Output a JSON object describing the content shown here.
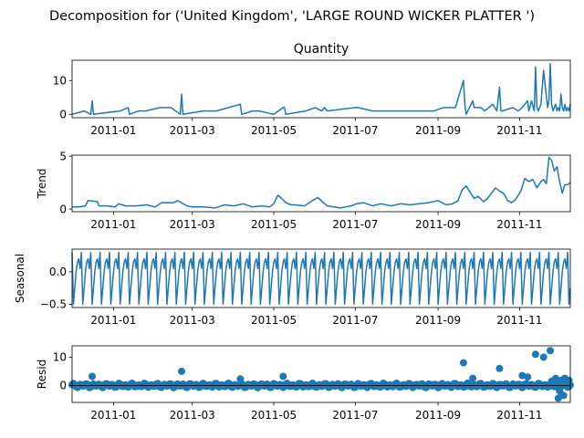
{
  "suptitle": "Decomposition for ('United Kingdom', 'LARGE ROUND WICKER PLATTER ')",
  "x_tick_labels": [
    "2011-01",
    "2011-03",
    "2011-05",
    "2011-07",
    "2011-09",
    "2011-11"
  ],
  "colors": {
    "line": "#1f77b4",
    "axis": "#000000"
  },
  "chart_data": [
    {
      "type": "line",
      "title": "Quantity",
      "ylabel": "",
      "ylim": [
        -1,
        16
      ],
      "yticks": [
        "0",
        "10"
      ],
      "x_range": [
        "2010-12-01",
        "2011-12-09"
      ],
      "series": [
        {
          "x": [
            "2010-12-01",
            "2010-12-10",
            "2010-12-15",
            "2010-12-16",
            "2010-12-17",
            "2011-01-06",
            "2011-01-12",
            "2011-01-13",
            "2011-01-20",
            "2011-01-25",
            "2011-02-05",
            "2011-02-13",
            "2011-02-20",
            "2011-02-21",
            "2011-02-22",
            "2011-03-09",
            "2011-03-18",
            "2011-03-19",
            "2011-04-06",
            "2011-04-07",
            "2011-04-15",
            "2011-04-20",
            "2011-05-01",
            "2011-05-08",
            "2011-05-09",
            "2011-05-10",
            "2011-05-25",
            "2011-06-01",
            "2011-06-06",
            "2011-06-08",
            "2011-06-10",
            "2011-07-01",
            "2011-07-03",
            "2011-07-14",
            "2011-07-21",
            "2011-08-03",
            "2011-08-15",
            "2011-08-29",
            "2011-09-05",
            "2011-09-14",
            "2011-09-20",
            "2011-09-21",
            "2011-09-22",
            "2011-09-27",
            "2011-09-28",
            "2011-10-03",
            "2011-10-06",
            "2011-10-12",
            "2011-10-15",
            "2011-10-17",
            "2011-10-18",
            "2011-10-19",
            "2011-10-27",
            "2011-10-31",
            "2011-11-03",
            "2011-11-07",
            "2011-11-08",
            "2011-11-10",
            "2011-11-12",
            "2011-11-13",
            "2011-11-14",
            "2011-11-15",
            "2011-11-17",
            "2011-11-19",
            "2011-11-22",
            "2011-11-23",
            "2011-11-24",
            "2011-11-25",
            "2011-11-26",
            "2011-11-27",
            "2011-11-28",
            "2011-11-29",
            "2011-11-30",
            "2011-12-01",
            "2011-12-02",
            "2011-12-03",
            "2011-12-04",
            "2011-12-05",
            "2011-12-06",
            "2011-12-07",
            "2011-12-08",
            "2011-12-09"
          ],
          "y": [
            0,
            1,
            0,
            4,
            0,
            1,
            2,
            0,
            1,
            1,
            2,
            2,
            0,
            6,
            0,
            1,
            1,
            1,
            3,
            0,
            1,
            1,
            0,
            2,
            2,
            0,
            1,
            2,
            1,
            2,
            1,
            2,
            2,
            1,
            1,
            1,
            1,
            1,
            2,
            2,
            10,
            3,
            0,
            4,
            2,
            2,
            1,
            3,
            1,
            8,
            1,
            1,
            2,
            1,
            2,
            4,
            1,
            4,
            1,
            14,
            2,
            1,
            3,
            13,
            2,
            4,
            15,
            3,
            1,
            2,
            3,
            1,
            2,
            1,
            6,
            2,
            1,
            3,
            1,
            2,
            1,
            3
          ]
        }
      ]
    },
    {
      "type": "line",
      "title": "",
      "ylabel": "Trend",
      "ylim": [
        -0.25,
        5.1
      ],
      "yticks": [
        "0",
        "5"
      ],
      "x_range": [
        "2010-12-01",
        "2011-12-09"
      ],
      "series": [
        {
          "x": [
            "2010-12-01",
            "2010-12-06",
            "2010-12-11",
            "2010-12-13",
            "2010-12-20",
            "2010-12-21",
            "2010-12-27",
            "2011-01-02",
            "2011-01-05",
            "2011-01-10",
            "2011-01-18",
            "2011-01-26",
            "2011-02-01",
            "2011-02-06",
            "2011-02-15",
            "2011-02-18",
            "2011-02-25",
            "2011-03-01",
            "2011-03-10",
            "2011-03-18",
            "2011-03-25",
            "2011-04-01",
            "2011-04-08",
            "2011-04-15",
            "2011-04-22",
            "2011-04-28",
            "2011-05-01",
            "2011-05-04",
            "2011-05-07",
            "2011-05-10",
            "2011-05-14",
            "2011-05-17",
            "2011-05-24",
            "2011-05-30",
            "2011-06-03",
            "2011-06-07",
            "2011-06-10",
            "2011-06-15",
            "2011-06-20",
            "2011-06-28",
            "2011-07-02",
            "2011-07-07",
            "2011-07-14",
            "2011-07-20",
            "2011-07-28",
            "2011-08-04",
            "2011-08-11",
            "2011-08-18",
            "2011-08-25",
            "2011-09-01",
            "2011-09-07",
            "2011-09-12",
            "2011-09-16",
            "2011-09-19",
            "2011-09-22",
            "2011-09-25",
            "2011-09-28",
            "2011-10-01",
            "2011-10-05",
            "2011-10-08",
            "2011-10-11",
            "2011-10-14",
            "2011-10-17",
            "2011-10-20",
            "2011-10-23",
            "2011-10-26",
            "2011-10-29",
            "2011-11-02",
            "2011-11-05",
            "2011-11-08",
            "2011-11-11",
            "2011-11-14",
            "2011-11-17",
            "2011-11-19",
            "2011-11-21",
            "2011-11-23",
            "2011-11-25",
            "2011-11-27",
            "2011-11-29",
            "2011-12-01",
            "2011-12-03",
            "2011-12-05",
            "2011-12-07",
            "2011-12-09"
          ],
          "y": [
            0.2,
            0.2,
            0.3,
            0.8,
            0.7,
            0.3,
            0.3,
            0.2,
            0.5,
            0.3,
            0.3,
            0.4,
            0.2,
            0.6,
            0.6,
            0.8,
            0.3,
            0.2,
            0.2,
            0.1,
            0.4,
            0.3,
            0.5,
            0.2,
            0.3,
            0.2,
            0.5,
            1.3,
            1.0,
            0.6,
            0.4,
            0.4,
            0.3,
            0.8,
            1.1,
            0.6,
            0.3,
            0.2,
            0.1,
            0.3,
            0.5,
            0.6,
            0.3,
            0.5,
            0.3,
            0.5,
            0.4,
            0.5,
            0.6,
            0.8,
            0.4,
            0.5,
            0.8,
            1.8,
            2.2,
            1.6,
            1.0,
            1.2,
            0.7,
            1.0,
            1.5,
            2.0,
            1.7,
            1.5,
            0.8,
            0.6,
            0.9,
            1.7,
            2.9,
            2.6,
            2.8,
            2.0,
            2.6,
            2.8,
            2.4,
            4.9,
            4.6,
            3.6,
            4.0,
            2.6,
            1.5,
            2.3,
            2.3,
            2.5
          ]
        }
      ]
    },
    {
      "type": "line",
      "title": "",
      "ylabel": "Seasonal",
      "ylim": [
        -0.55,
        0.35
      ],
      "yticks": [
        "0.0",
        "−0.5"
      ],
      "x_range": [
        "2010-12-01",
        "2011-12-09"
      ],
      "period_days": 7,
      "pattern": [
        0.3,
        -0.5,
        -0.25,
        0.0,
        0.15,
        0.2,
        0.05
      ]
    },
    {
      "type": "scatter",
      "title": "",
      "ylabel": "Resid",
      "ylim": [
        -6,
        14
      ],
      "yticks": [
        "0",
        "10"
      ],
      "x_range": [
        "2010-12-01",
        "2011-12-09"
      ],
      "series": [
        {
          "x": [
            "2010-12-16",
            "2011-02-21",
            "2011-04-06",
            "2011-05-08",
            "2011-09-20",
            "2011-09-27",
            "2011-10-17",
            "2011-11-03",
            "2011-11-07",
            "2011-11-13",
            "2011-11-19",
            "2011-11-24",
            "2011-11-25",
            "2011-11-28",
            "2011-12-01",
            "2011-12-02",
            "2011-12-05",
            "2011-12-08",
            "2011-12-04",
            "2011-11-30"
          ],
          "y": [
            3.2,
            5.0,
            2.3,
            3.2,
            8.0,
            2.5,
            6.0,
            3.5,
            3.0,
            11.0,
            10.0,
            12.3,
            1.5,
            2.5,
            -2.0,
            1.8,
            2.5,
            1.8,
            -3.5,
            -4.5
          ]
        }
      ]
    }
  ]
}
